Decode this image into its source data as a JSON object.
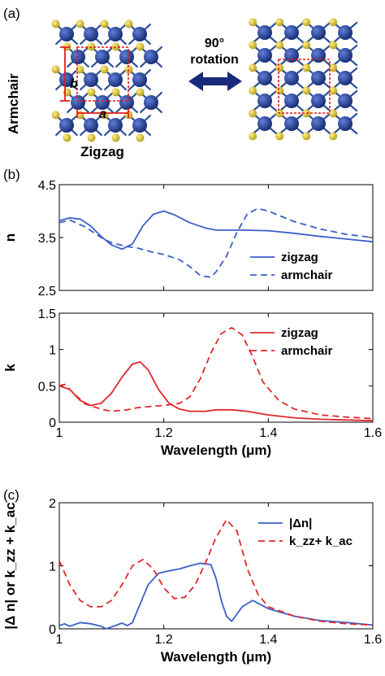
{
  "panel_a": {
    "label": "(a)",
    "armchair_label": "Armchair",
    "zigzag_label": "Zigzag",
    "lattice_a": "a",
    "lattice_b": "b",
    "rotation_line1": "90°",
    "rotation_line2": "rotation",
    "colors": {
      "atom_large": "#23449a",
      "atom_small": "#d8c12a",
      "bond": "#2e4f93",
      "cell": "#e01b1b",
      "arrow": "#1a2a7a"
    }
  },
  "panel_b_label": "(b)",
  "panel_c_label": "(c)",
  "chart_data": [
    {
      "type": "line",
      "ylabel": "n",
      "xlim": [
        1,
        1.6
      ],
      "ylim": [
        2.5,
        4.5
      ],
      "yticks": [
        "2.5",
        "3.5",
        "4.5"
      ],
      "legend": "bottom-right",
      "series": [
        {
          "name": "zigzag",
          "color": "#3b5fc9",
          "dash": "solid",
          "x": [
            1.0,
            1.02,
            1.04,
            1.06,
            1.08,
            1.1,
            1.12,
            1.14,
            1.16,
            1.18,
            1.2,
            1.22,
            1.25,
            1.28,
            1.3,
            1.35,
            1.4,
            1.45,
            1.5,
            1.55,
            1.6
          ],
          "y": [
            3.82,
            3.87,
            3.85,
            3.72,
            3.52,
            3.36,
            3.28,
            3.38,
            3.72,
            3.94,
            4.0,
            3.93,
            3.78,
            3.68,
            3.64,
            3.64,
            3.63,
            3.58,
            3.52,
            3.47,
            3.42
          ]
        },
        {
          "name": "armchair",
          "color": "#3b5fc9",
          "dash": "dashed",
          "x": [
            1.0,
            1.02,
            1.05,
            1.08,
            1.1,
            1.13,
            1.15,
            1.18,
            1.2,
            1.23,
            1.25,
            1.27,
            1.29,
            1.3,
            1.32,
            1.34,
            1.36,
            1.38,
            1.4,
            1.45,
            1.5,
            1.55,
            1.6
          ],
          "y": [
            3.78,
            3.83,
            3.7,
            3.5,
            3.4,
            3.33,
            3.3,
            3.22,
            3.18,
            3.08,
            2.95,
            2.78,
            2.75,
            2.85,
            3.15,
            3.6,
            3.95,
            4.05,
            4.0,
            3.8,
            3.66,
            3.56,
            3.5
          ]
        }
      ]
    },
    {
      "type": "line",
      "ylabel": "k",
      "xlim": [
        1,
        1.6
      ],
      "ylim": [
        0,
        1.5
      ],
      "yticks": [
        "0",
        "0.5",
        "1",
        "1.5"
      ],
      "xticks": [
        "1",
        "1.2",
        "1.4",
        "1.6"
      ],
      "xlabel": "Wavelength (μm)",
      "legend": "top-right",
      "series": [
        {
          "name": "zigzag",
          "color": "#e0282a",
          "dash": "solid",
          "x": [
            1.0,
            1.02,
            1.04,
            1.06,
            1.08,
            1.1,
            1.12,
            1.14,
            1.155,
            1.17,
            1.19,
            1.21,
            1.23,
            1.25,
            1.28,
            1.3,
            1.33,
            1.36,
            1.4,
            1.45,
            1.5,
            1.55,
            1.6
          ],
          "y": [
            0.5,
            0.45,
            0.3,
            0.23,
            0.26,
            0.4,
            0.62,
            0.8,
            0.83,
            0.72,
            0.45,
            0.26,
            0.18,
            0.15,
            0.15,
            0.17,
            0.17,
            0.15,
            0.1,
            0.06,
            0.04,
            0.03,
            0.02
          ]
        },
        {
          "name": "armchair",
          "color": "#e0282a",
          "dash": "dashed",
          "x": [
            1.0,
            1.01,
            1.03,
            1.05,
            1.08,
            1.1,
            1.13,
            1.15,
            1.18,
            1.2,
            1.23,
            1.25,
            1.27,
            1.29,
            1.31,
            1.33,
            1.35,
            1.37,
            1.39,
            1.42,
            1.45,
            1.5,
            1.55,
            1.6
          ],
          "y": [
            0.5,
            0.52,
            0.38,
            0.25,
            0.18,
            0.15,
            0.17,
            0.2,
            0.22,
            0.23,
            0.26,
            0.35,
            0.6,
            0.95,
            1.22,
            1.3,
            1.2,
            0.9,
            0.55,
            0.3,
            0.18,
            0.1,
            0.07,
            0.05
          ]
        }
      ]
    },
    {
      "type": "line",
      "ylabel": "|Δ n| or k_zz + k_ac",
      "xlim": [
        1,
        1.6
      ],
      "ylim": [
        0,
        2
      ],
      "yticks": [
        "0",
        "1",
        "2"
      ],
      "xticks": [
        "1",
        "1.2",
        "1.4",
        "1.6"
      ],
      "xlabel": "Wavelength (μm)",
      "legend": "top-right",
      "series": [
        {
          "name": "|Δn|",
          "color": "#3b5fc9",
          "dash": "solid",
          "x": [
            1.0,
            1.01,
            1.02,
            1.04,
            1.06,
            1.08,
            1.09,
            1.1,
            1.12,
            1.13,
            1.14,
            1.15,
            1.17,
            1.19,
            1.21,
            1.23,
            1.25,
            1.27,
            1.29,
            1.3,
            1.31,
            1.32,
            1.33,
            1.35,
            1.37,
            1.4,
            1.45,
            1.5,
            1.55,
            1.6
          ],
          "y": [
            0.05,
            0.08,
            0.04,
            0.1,
            0.08,
            0.04,
            0.0,
            0.03,
            0.09,
            0.05,
            0.1,
            0.3,
            0.7,
            0.88,
            0.92,
            0.95,
            1.0,
            1.04,
            1.02,
            0.8,
            0.45,
            0.2,
            0.12,
            0.35,
            0.45,
            0.32,
            0.2,
            0.13,
            0.1,
            0.06
          ]
        },
        {
          "name": "k_zz+ k_ac",
          "color": "#e0282a",
          "dash": "dashed",
          "x": [
            1.0,
            1.02,
            1.04,
            1.06,
            1.08,
            1.1,
            1.12,
            1.14,
            1.16,
            1.18,
            1.2,
            1.22,
            1.24,
            1.26,
            1.28,
            1.3,
            1.32,
            1.34,
            1.36,
            1.38,
            1.4,
            1.45,
            1.5,
            1.55,
            1.6
          ],
          "y": [
            1.08,
            0.7,
            0.45,
            0.35,
            0.35,
            0.45,
            0.7,
            1.0,
            1.1,
            0.95,
            0.65,
            0.48,
            0.5,
            0.7,
            1.05,
            1.45,
            1.73,
            1.55,
            0.95,
            0.55,
            0.35,
            0.2,
            0.12,
            0.08,
            0.06
          ]
        }
      ]
    }
  ]
}
